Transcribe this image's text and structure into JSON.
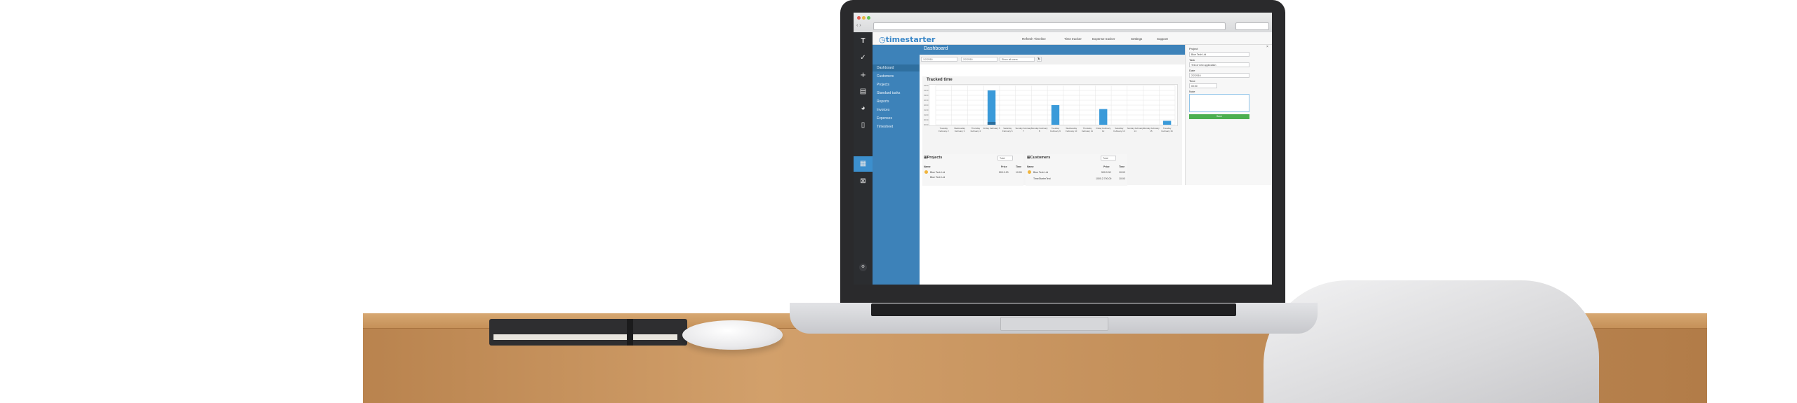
{
  "app": {
    "logo_text": "timestarter",
    "top_links": [
      "Refresh Timeline",
      "Time tracker",
      "Expense tracker",
      "Settings",
      "Support"
    ],
    "brand_color": "#3d82b9"
  },
  "rail_icons": [
    "logo-mark-icon",
    "check-icon",
    "plus-icon",
    "stack-icon",
    "pie-icon",
    "document-icon",
    "grid-icon",
    "close-box-icon",
    "settings-icon"
  ],
  "nav": {
    "items": [
      "Dashboard",
      "Customers",
      "Projects",
      "Standard tasks",
      "Reports",
      "Invoices",
      "Expenses",
      "Timesheet"
    ]
  },
  "dashboard": {
    "title": "Dashboard",
    "filter_from": "1/2/2016",
    "filter_to": "2/2/2016",
    "filter_users": "Show all users"
  },
  "tracked": {
    "title": "Tracked time",
    "y_ticks": [
      "00:00",
      "00:30",
      "01:00",
      "01:30",
      "02:00",
      "02:30",
      "03:00",
      "03:30",
      "04:00"
    ],
    "days": [
      [
        "Tuesday",
        "February 2"
      ],
      [
        "Wednesday",
        "February 3"
      ],
      [
        "Thursday",
        "February 4"
      ],
      [
        "Friday",
        "February 5"
      ],
      [
        "Saturday",
        "February 6"
      ],
      [
        "Sunday",
        "February 7"
      ],
      [
        "Monday",
        "February 8"
      ],
      [
        "Tuesday",
        "February 9"
      ],
      [
        "Wednesday",
        "February 10"
      ],
      [
        "Thursday",
        "February 11"
      ],
      [
        "Friday",
        "February 12"
      ],
      [
        "Saturday",
        "February 13"
      ],
      [
        "Sunday",
        "February 14"
      ],
      [
        "Monday",
        "February 15"
      ],
      [
        "Tuesday",
        "February 16"
      ]
    ]
  },
  "chart_data": {
    "type": "bar",
    "title": "Tracked time",
    "categories": [
      "February 2",
      "February 3",
      "February 4",
      "February 5",
      "February 6",
      "February 7",
      "February 8",
      "February 9",
      "February 10",
      "February 11",
      "February 12",
      "February 13",
      "February 14",
      "February 15",
      "February 16"
    ],
    "values": [
      0,
      0,
      0,
      3.5,
      0,
      0,
      0,
      2.0,
      0,
      0,
      1.6,
      0,
      0,
      0,
      0.4
    ],
    "ylim": [
      0,
      4
    ],
    "colors": {
      "bar": "#3a9ad9",
      "bar_dark": "#2b6f9e"
    }
  },
  "projects": {
    "title": "Projects",
    "select": "Total",
    "headers": [
      "Name",
      "Price",
      "Time"
    ],
    "rows": [
      [
        "Blue Tech Ltd",
        " 500.0.00",
        "10:00"
      ],
      [
        "Blue Tech Ltd",
        "",
        ""
      ]
    ]
  },
  "customers": {
    "title": "Customers",
    "select": "Total",
    "headers": [
      "Name",
      "Price",
      "Time"
    ],
    "rows": [
      [
        "Blue Tech Ltd",
        " 500.0.00",
        "10:00"
      ],
      [
        "TimeStarterTest",
        "1000.2.700.00",
        "10:00"
      ]
    ]
  },
  "form": {
    "project_label": "Project",
    "project_value": "Blue Tech Ltd",
    "task_label": "Task",
    "task_value": "Test of new application",
    "date_label": "Date",
    "date_value": "2/2/2016",
    "time_label": "Time",
    "time_value": "00:00",
    "note_label": "Note",
    "save_label": "Save"
  }
}
